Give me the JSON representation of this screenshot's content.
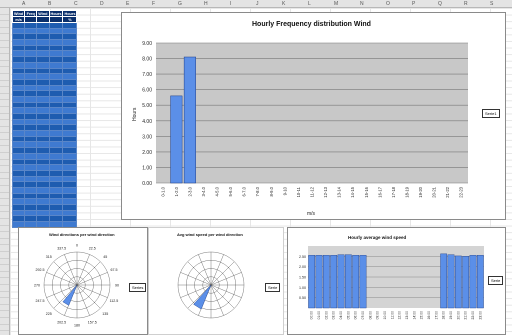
{
  "columns": [
    "A",
    "B",
    "C",
    "D",
    "E",
    "F",
    "G",
    "H",
    "I",
    "J",
    "K",
    "L",
    "M",
    "N",
    "O",
    "P",
    "Q",
    "R",
    "S",
    "T"
  ],
  "table": {
    "headers": [
      "Wind",
      "Freq",
      "Wind",
      "Hours",
      "Hours"
    ],
    "subheaders": [
      "m/s",
      "",
      "",
      "",
      "%"
    ],
    "row_count": 36
  },
  "main_chart": {
    "chart_data": {
      "type": "bar",
      "title": "Hourly Frequency distribution Wind",
      "xlabel": "m/s",
      "ylabel": "Hours",
      "ylim": [
        0,
        9
      ],
      "yticks": [
        "0.00",
        "1.00",
        "2.00",
        "3.00",
        "4.00",
        "5.00",
        "6.00",
        "7.00",
        "8.00",
        "9.00"
      ],
      "categories": [
        "0-1.0",
        "1-2.0",
        "2-3.0",
        "3-4.0",
        "4-5.0",
        "5-6.0",
        "6-7.0",
        "7-8.0",
        "8-9.0",
        "9-10",
        "10-11",
        "11-12",
        "12-13",
        "13-14",
        "14-15",
        "15-16",
        "16-17",
        "17-18",
        "18-19",
        "19-20",
        "20-21",
        "21-22",
        "22-23"
      ],
      "values": [
        0,
        5.6,
        8.1,
        0,
        0,
        0,
        0,
        0,
        0,
        0,
        0,
        0,
        0,
        0,
        0,
        0,
        0,
        0,
        0,
        0,
        0,
        0,
        0
      ],
      "legend": "Serie1",
      "bar_color": "#5b8fe8",
      "plot_bg": "#c8c8c8"
    }
  },
  "rose1": {
    "title": "Wind directions per wind direction",
    "legend": "Series",
    "angles": [
      "0",
      "22.5",
      "45",
      "67.5",
      "90",
      "112.5",
      "135",
      "157.5",
      "180",
      "202.5",
      "225",
      "247.5",
      "270",
      "292.5",
      "315",
      "337.5"
    ]
  },
  "rose2": {
    "title": "Avg wind speed per wind direction",
    "legend": "Serie"
  },
  "hourly": {
    "chart_data": {
      "type": "bar",
      "title": "Hourly average wind speed",
      "ylim": [
        0,
        3
      ],
      "yticks": [
        "0.50",
        "1.00",
        "1.50",
        "2.00",
        "2.50"
      ],
      "categories": [
        "00:00",
        "01:00",
        "02:00",
        "03:00",
        "04:00",
        "05:00",
        "06:00",
        "07:00",
        "08:00",
        "09:00",
        "10:00",
        "11:00",
        "12:00",
        "13:00",
        "14:00",
        "15:00",
        "16:00",
        "17:00",
        "18:00",
        "19:00",
        "20:00",
        "21:00",
        "22:00",
        "23:00"
      ],
      "values": [
        2.55,
        2.55,
        2.55,
        2.55,
        2.58,
        2.58,
        2.55,
        2.55,
        0,
        0,
        0,
        0,
        0,
        0,
        0,
        0,
        0,
        0,
        2.62,
        2.58,
        2.52,
        2.5,
        2.55,
        2.55
      ],
      "legend": "Serie",
      "bar_color": "#5b8fe8"
    }
  }
}
